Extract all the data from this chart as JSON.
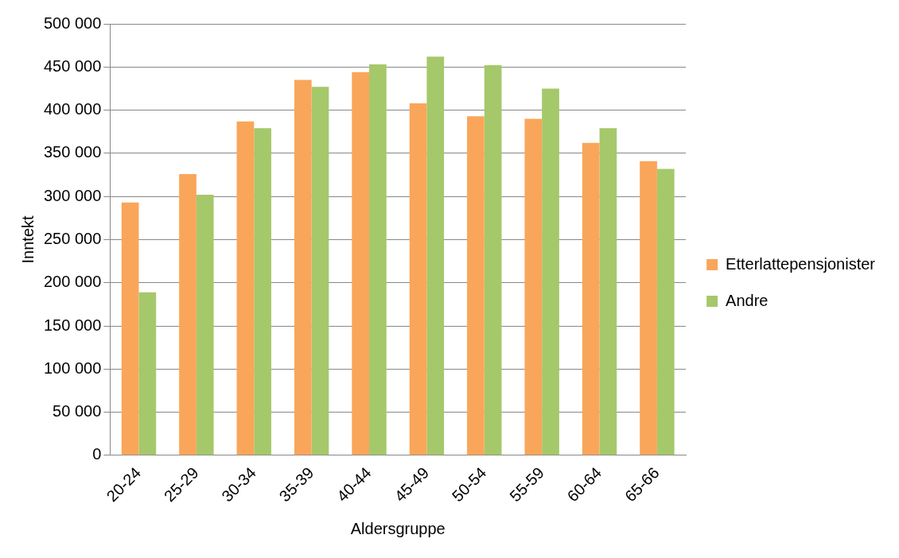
{
  "chart_data": {
    "type": "bar",
    "xlabel": "Aldersgruppe",
    "ylabel": "Inntekt",
    "categories": [
      "20-24",
      "25-29",
      "30-34",
      "35-39",
      "40-44",
      "45-49",
      "50-54",
      "55-59",
      "60-64",
      "65-66"
    ],
    "series": [
      {
        "name": "Etterlattepensjonister",
        "color": "#f9a65a",
        "values": [
          293000,
          326000,
          387000,
          435000,
          444000,
          408000,
          393000,
          390000,
          362000,
          341000
        ]
      },
      {
        "name": "Andre",
        "color": "#a5c86a",
        "values": [
          189000,
          302000,
          379000,
          427000,
          453000,
          462000,
          452000,
          425000,
          379000,
          332000
        ]
      }
    ],
    "ylim": [
      0,
      500000
    ],
    "yticks": [
      {
        "value": 0,
        "label": "0"
      },
      {
        "value": 50000,
        "label": "50 000"
      },
      {
        "value": 100000,
        "label": "100 000"
      },
      {
        "value": 150000,
        "label": "150 000"
      },
      {
        "value": 200000,
        "label": "200 000"
      },
      {
        "value": 250000,
        "label": "250 000"
      },
      {
        "value": 300000,
        "label": "300 000"
      },
      {
        "value": 350000,
        "label": "350 000"
      },
      {
        "value": 400000,
        "label": "400 000"
      },
      {
        "value": 450000,
        "label": "450 000"
      },
      {
        "value": 500000,
        "label": "500 000"
      }
    ],
    "grid": "y",
    "legend": "right"
  }
}
